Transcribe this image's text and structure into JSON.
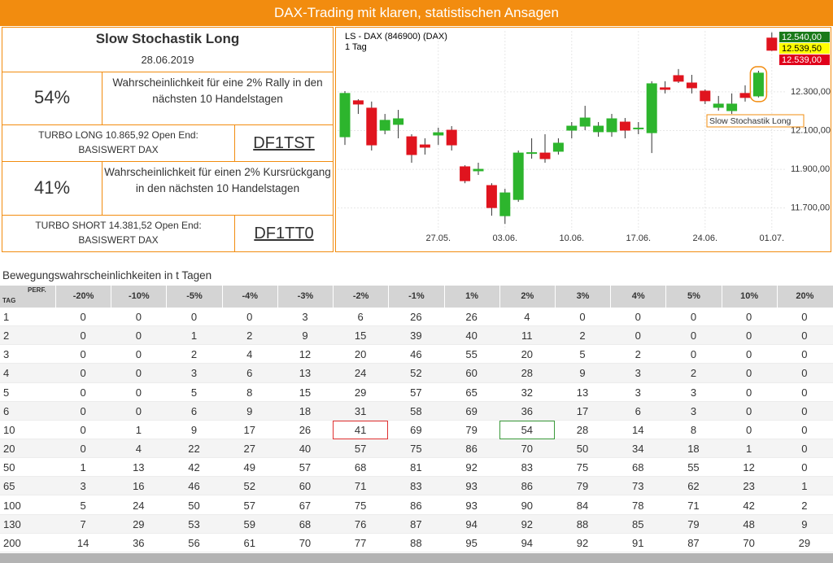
{
  "header": {
    "title": "DAX-Trading mit klaren, statistischen Ansagen"
  },
  "signal": {
    "name": "Slow Stochastik Long",
    "date": "28.06.2019"
  },
  "long": {
    "probability": "54%",
    "text": [
      "Wahrscheinlichkeit für eine 2% Rally in den",
      "nächsten 10 Handelstagen"
    ],
    "product": "TURBO LONG 10.865,92 Open End:",
    "underlying": "BASISWERT DAX",
    "wkn": "DF1TST"
  },
  "short": {
    "probability": "41%",
    "text": [
      "Wahrscheinlichkeit für einen 2% Kursrückgang",
      "in den nächsten 10 Handelstagen"
    ],
    "product": "TURBO SHORT 14.381,52 Open End:",
    "underlying": "BASISWERT DAX",
    "wkn": "DF1TT0"
  },
  "chart_data": {
    "type": "candlestick",
    "title": "LS - DAX (846900) (DAX)",
    "subtitle": "1 Tag",
    "categories": [
      null,
      null,
      null,
      null,
      null,
      null,
      null,
      "27.05.",
      null,
      null,
      null,
      null,
      "03.06.",
      null,
      null,
      null,
      null,
      "10.06.",
      null,
      null,
      null,
      null,
      "17.06.",
      null,
      null,
      null,
      null,
      "24.06.",
      null,
      null,
      null,
      null,
      "01.07."
    ],
    "open": [
      12068,
      12254,
      12216,
      12102,
      12132,
      12068,
      12026,
      12077,
      12102,
      11913,
      11892,
      11816,
      11660,
      11744,
      11982,
      11984,
      11993,
      12102,
      12123,
      12094,
      12094,
      12144,
      12109,
      12089,
      12321,
      12384,
      12346,
      12304,
      12220,
      12203,
      12292,
      12279,
      12578
    ],
    "high": [
      12304,
      12262,
      12250,
      12186,
      12207,
      12081,
      12060,
      12115,
      12123,
      11921,
      11934,
      11828,
      11799,
      11997,
      12060,
      12081,
      12060,
      12144,
      12228,
      12144,
      12186,
      12165,
      12144,
      12355,
      12355,
      12418,
      12388,
      12313,
      12279,
      12292,
      12334,
      12409,
      12607
    ],
    "low": [
      12026,
      12186,
      11997,
      12081,
      12060,
      11934,
      11976,
      12026,
      11997,
      11828,
      11871,
      11660,
      11618,
      11732,
      11955,
      11934,
      11976,
      12060,
      12102,
      12068,
      12068,
      12060,
      12081,
      11984,
      12292,
      12346,
      12292,
      12237,
      12203,
      12186,
      12250,
      12271,
      12511
    ],
    "close": [
      12292,
      12237,
      12026,
      12153,
      12161,
      11976,
      12014,
      12089,
      12026,
      11841,
      11900,
      11702,
      11778,
      11984,
      11986,
      11955,
      12035,
      12123,
      12165,
      12123,
      12161,
      12102,
      12113,
      12342,
      12313,
      12355,
      12321,
      12254,
      12237,
      12237,
      12271,
      12397,
      12515
    ],
    "up_color": "#2db52d",
    "down_color": "#e0141e",
    "ylim": [
      11585,
      12615
    ],
    "yticks": [
      {
        "value": 11700,
        "label": "11.700,00"
      },
      {
        "value": 11900,
        "label": "11.900,00"
      },
      {
        "value": 12100,
        "label": "12.100,00"
      },
      {
        "value": 12300,
        "label": "12.300,00"
      }
    ],
    "grid": true,
    "price_tags": [
      "12.540,00",
      "12.539,50",
      "12.539,00"
    ],
    "annotation": "Slow Stochastik Long"
  },
  "table": {
    "title": "Bewegungswahrscheinlichkeiten in t Tagen",
    "corner": {
      "top": "PERF.",
      "bottom": "TAG"
    },
    "columns": [
      "-20%",
      "-10%",
      "-5%",
      "-4%",
      "-3%",
      "-2%",
      "-1%",
      "1%",
      "2%",
      "3%",
      "4%",
      "5%",
      "10%",
      "20%"
    ],
    "rows": [
      [
        1,
        0,
        0,
        0,
        0,
        3,
        6,
        26,
        26,
        4,
        0,
        0,
        0,
        0,
        0
      ],
      [
        2,
        0,
        0,
        1,
        2,
        9,
        15,
        39,
        40,
        11,
        2,
        0,
        0,
        0,
        0
      ],
      [
        3,
        0,
        0,
        2,
        4,
        12,
        20,
        46,
        55,
        20,
        5,
        2,
        0,
        0,
        0
      ],
      [
        4,
        0,
        0,
        3,
        6,
        13,
        24,
        52,
        60,
        28,
        9,
        3,
        2,
        0,
        0
      ],
      [
        5,
        0,
        0,
        5,
        8,
        15,
        29,
        57,
        65,
        32,
        13,
        3,
        3,
        0,
        0
      ],
      [
        6,
        0,
        0,
        6,
        9,
        18,
        31,
        58,
        69,
        36,
        17,
        6,
        3,
        0,
        0
      ],
      [
        10,
        0,
        1,
        9,
        17,
        26,
        41,
        69,
        79,
        54,
        28,
        14,
        8,
        0,
        0
      ],
      [
        20,
        0,
        4,
        22,
        27,
        40,
        57,
        75,
        86,
        70,
        50,
        34,
        18,
        1,
        0
      ],
      [
        50,
        1,
        13,
        42,
        49,
        57,
        68,
        81,
        92,
        83,
        75,
        68,
        55,
        12,
        0
      ],
      [
        65,
        3,
        16,
        46,
        52,
        60,
        71,
        83,
        93,
        86,
        79,
        73,
        62,
        23,
        1
      ],
      [
        100,
        5,
        24,
        50,
        57,
        67,
        75,
        86,
        93,
        90,
        84,
        78,
        71,
        42,
        2
      ],
      [
        130,
        7,
        29,
        53,
        59,
        68,
        76,
        87,
        94,
        92,
        88,
        85,
        79,
        48,
        9
      ],
      [
        200,
        14,
        36,
        56,
        61,
        70,
        77,
        88,
        95,
        94,
        92,
        91,
        87,
        70,
        29
      ]
    ]
  }
}
